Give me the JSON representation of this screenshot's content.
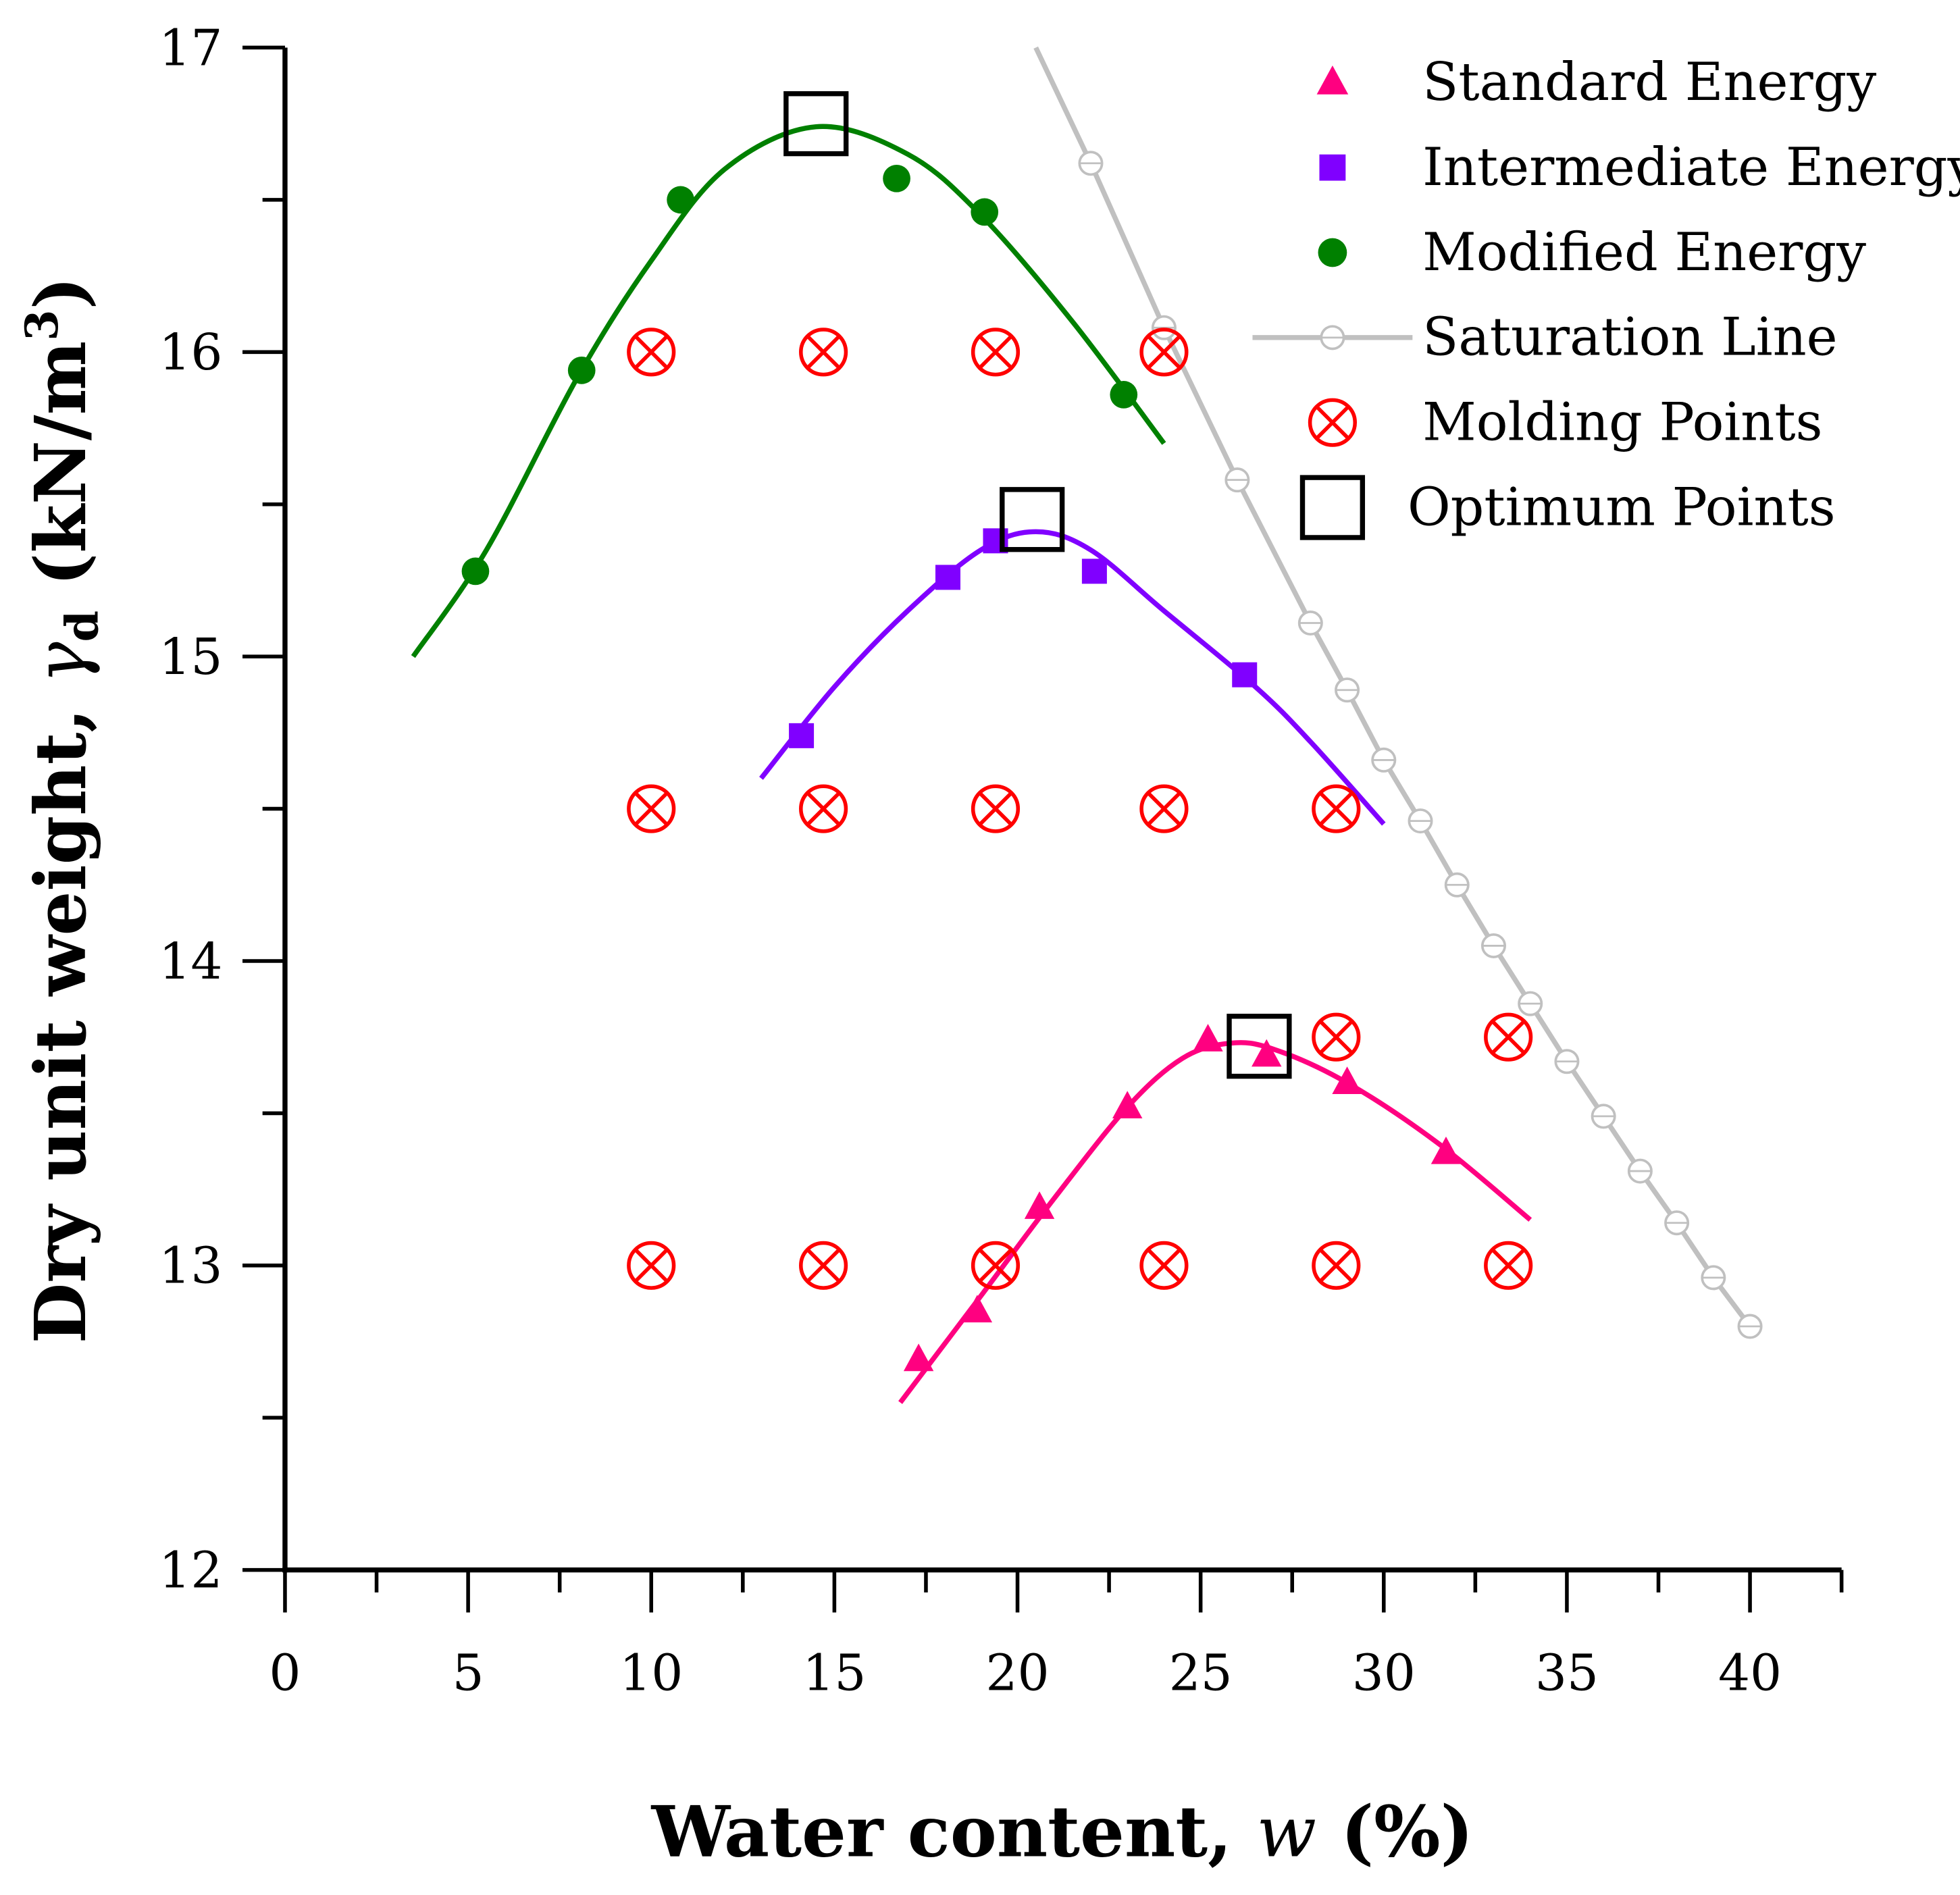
{
  "chart_data": {
    "type": "scatter",
    "xlabel": "Water content, w (%)",
    "ylabel": "Dry unit weight, γd (kN/m3)",
    "xlabel_parts": {
      "main": "Water content, ",
      "var": "w",
      "unit": " (%)"
    },
    "ylabel_parts": {
      "main": "Dry unit weight, ",
      "var": "γ",
      "sub": "d",
      "unit": " (kN/m",
      "sup": "3",
      ")": ")"
    },
    "xlim": [
      0,
      42.5
    ],
    "ylim": [
      12,
      17
    ],
    "xticks": [
      0,
      5,
      10,
      15,
      20,
      25,
      30,
      35,
      40
    ],
    "yticks": [
      12,
      13,
      14,
      15,
      16,
      17
    ],
    "grid": false,
    "legend_position": "top-right",
    "series": [
      {
        "name": "Standard Energy",
        "color": "#ff0080",
        "marker": "triangle",
        "points": [
          [
            17.3,
            12.69
          ],
          [
            18.9,
            12.85
          ],
          [
            20.6,
            13.19
          ],
          [
            23.0,
            13.52
          ],
          [
            25.2,
            13.74
          ],
          [
            26.8,
            13.69
          ],
          [
            29.0,
            13.6
          ],
          [
            31.7,
            13.37
          ]
        ],
        "fit": [
          [
            16.8,
            12.55
          ],
          [
            19,
            12.9
          ],
          [
            21,
            13.22
          ],
          [
            23,
            13.52
          ],
          [
            24.5,
            13.68
          ],
          [
            25.8,
            13.73
          ],
          [
            27,
            13.71
          ],
          [
            29,
            13.6
          ],
          [
            31.5,
            13.4
          ],
          [
            34,
            13.15
          ]
        ]
      },
      {
        "name": "Intermediate Energy",
        "color": "#8000ff",
        "marker": "square",
        "points": [
          [
            14.1,
            14.74
          ],
          [
            18.1,
            15.26
          ],
          [
            19.4,
            15.38
          ],
          [
            22.1,
            15.28
          ],
          [
            26.2,
            14.94
          ]
        ],
        "fit": [
          [
            13,
            14.6
          ],
          [
            15,
            14.9
          ],
          [
            17,
            15.15
          ],
          [
            19,
            15.35
          ],
          [
            20.5,
            15.41
          ],
          [
            22,
            15.35
          ],
          [
            24,
            15.15
          ],
          [
            26.5,
            14.9
          ],
          [
            28,
            14.72
          ],
          [
            30,
            14.45
          ]
        ]
      },
      {
        "name": "Modified Energy",
        "color": "#008000",
        "marker": "circle",
        "points": [
          [
            5.2,
            15.28
          ],
          [
            8.1,
            15.94
          ],
          [
            10.8,
            16.5
          ],
          [
            16.7,
            16.57
          ],
          [
            19.1,
            16.46
          ],
          [
            22.9,
            15.86
          ]
        ],
        "fit": [
          [
            3.5,
            15.0
          ],
          [
            5.5,
            15.35
          ],
          [
            8,
            15.92
          ],
          [
            10,
            16.3
          ],
          [
            12,
            16.6
          ],
          [
            14.5,
            16.74
          ],
          [
            17,
            16.65
          ],
          [
            19,
            16.45
          ],
          [
            21.5,
            16.1
          ],
          [
            24,
            15.7
          ]
        ]
      },
      {
        "name": "Saturation Line",
        "color": "#c0c0c0",
        "marker": "open-circle",
        "points": [
          [
            22,
            16.62
          ],
          [
            24,
            16.08
          ],
          [
            26,
            15.58
          ],
          [
            28,
            15.11
          ],
          [
            29,
            14.89
          ],
          [
            30,
            14.66
          ],
          [
            31,
            14.46
          ],
          [
            32,
            14.25
          ],
          [
            33,
            14.05
          ],
          [
            34,
            13.86
          ],
          [
            35,
            13.67
          ],
          [
            36,
            13.49
          ],
          [
            37,
            13.31
          ],
          [
            38,
            13.14
          ],
          [
            39,
            12.96
          ],
          [
            40,
            12.8
          ]
        ],
        "line_start": [
          20.5,
          17.0
        ]
      },
      {
        "name": "Molding Points",
        "color": "#ff0000",
        "marker": "circle-x",
        "points": [
          [
            10,
            16
          ],
          [
            14.7,
            16
          ],
          [
            19.4,
            16
          ],
          [
            24,
            16
          ],
          [
            10,
            14.5
          ],
          [
            14.7,
            14.5
          ],
          [
            19.4,
            14.5
          ],
          [
            24,
            14.5
          ],
          [
            28.7,
            14.5
          ],
          [
            28.7,
            13.75
          ],
          [
            33.4,
            13.75
          ],
          [
            10,
            13
          ],
          [
            14.7,
            13
          ],
          [
            19.4,
            13
          ],
          [
            24,
            13
          ],
          [
            28.7,
            13
          ],
          [
            33.4,
            13
          ]
        ]
      },
      {
        "name": "Optimum Points",
        "color": "#000000",
        "marker": "open-square",
        "points": [
          [
            14.5,
            16.75
          ],
          [
            20.4,
            15.45
          ],
          [
            26.6,
            13.72
          ]
        ]
      }
    ]
  }
}
